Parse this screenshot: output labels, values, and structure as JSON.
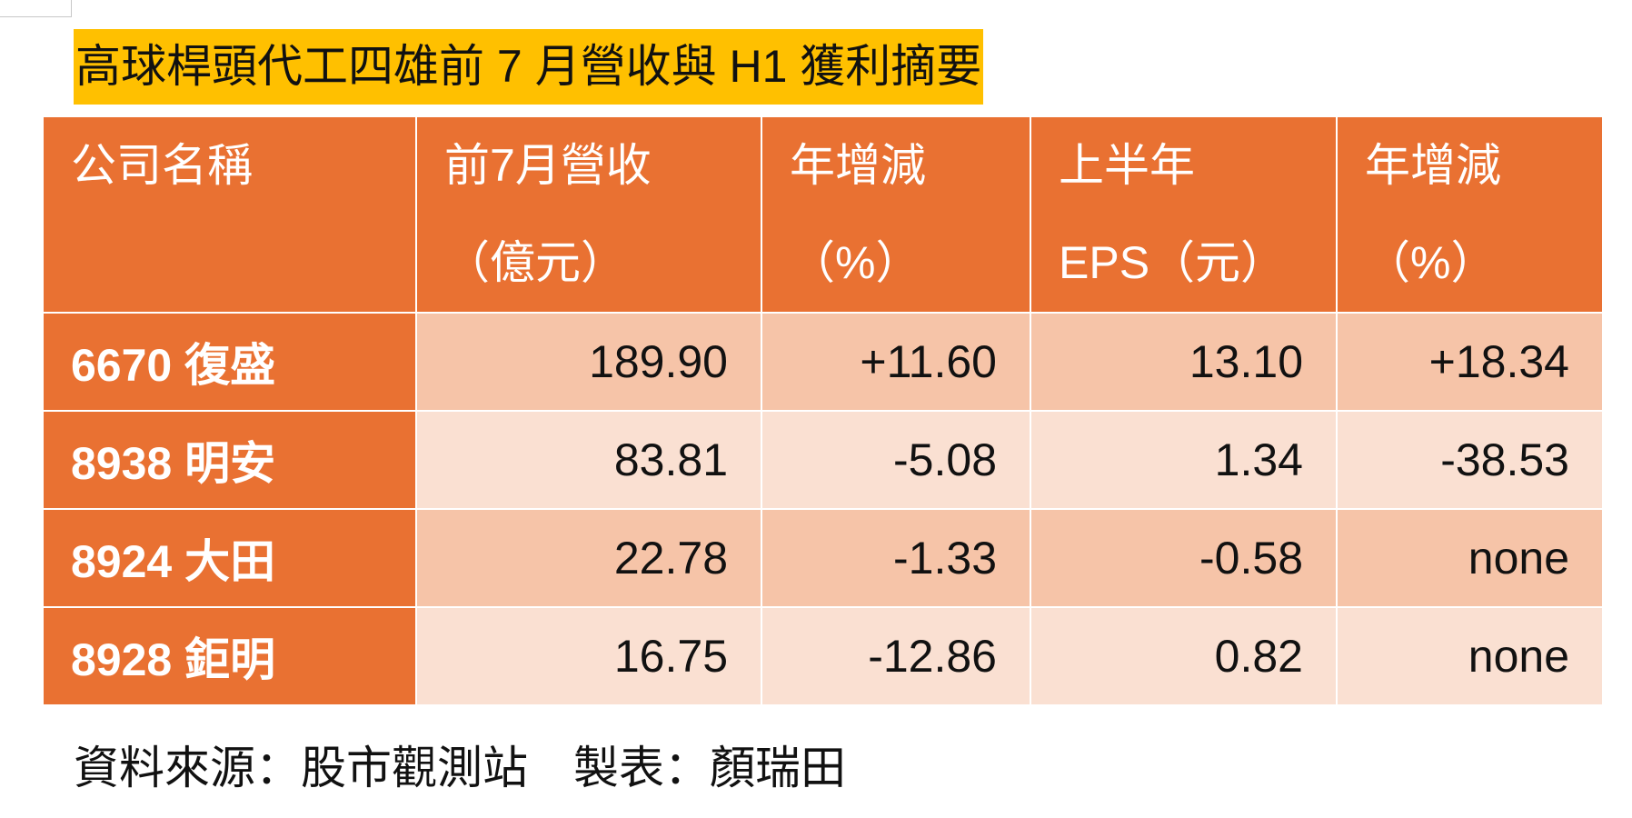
{
  "title": "高球桿頭代工四雄前 7 月營收與 H1 獲利摘要",
  "table": {
    "header": [
      [
        "公司名稱"
      ],
      [
        "前7月營收",
        "（億元）"
      ],
      [
        "年增減",
        "（%）"
      ],
      [
        "上半年",
        "EPS（元）"
      ],
      [
        "年增減",
        "（%）"
      ]
    ],
    "rows": [
      [
        "6670 復盛",
        "189.90",
        "+11.60",
        "13.10",
        "+18.34"
      ],
      [
        "8938 明安",
        "83.81",
        "-5.08",
        "1.34",
        "-38.53"
      ],
      [
        "8924 大田",
        "22.78",
        "-1.33",
        "-0.58",
        "none"
      ],
      [
        "8928 鉅明",
        "16.75",
        "-12.86",
        "0.82",
        "none"
      ]
    ]
  },
  "footer": "資料來源：股市觀測站　製表：顏瑞田"
}
